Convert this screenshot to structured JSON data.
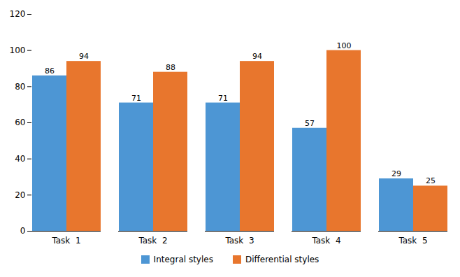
{
  "chart_data": {
    "type": "bar",
    "categories": [
      "Task  1",
      "Task  2",
      "Task  3",
      "Task  4",
      "Task  5"
    ],
    "series": [
      {
        "name": "Integral styles",
        "color": "#4d96d4",
        "values": [
          86,
          71,
          71,
          57,
          29
        ]
      },
      {
        "name": "Differential styles",
        "color": "#E8762D",
        "values": [
          94,
          88,
          94,
          100,
          25
        ]
      }
    ],
    "ylim": [
      0,
      120
    ],
    "yticks": [
      0,
      20,
      40,
      60,
      80,
      100,
      120
    ],
    "grid": false,
    "legend": "bottom",
    "data_labels": true
  }
}
